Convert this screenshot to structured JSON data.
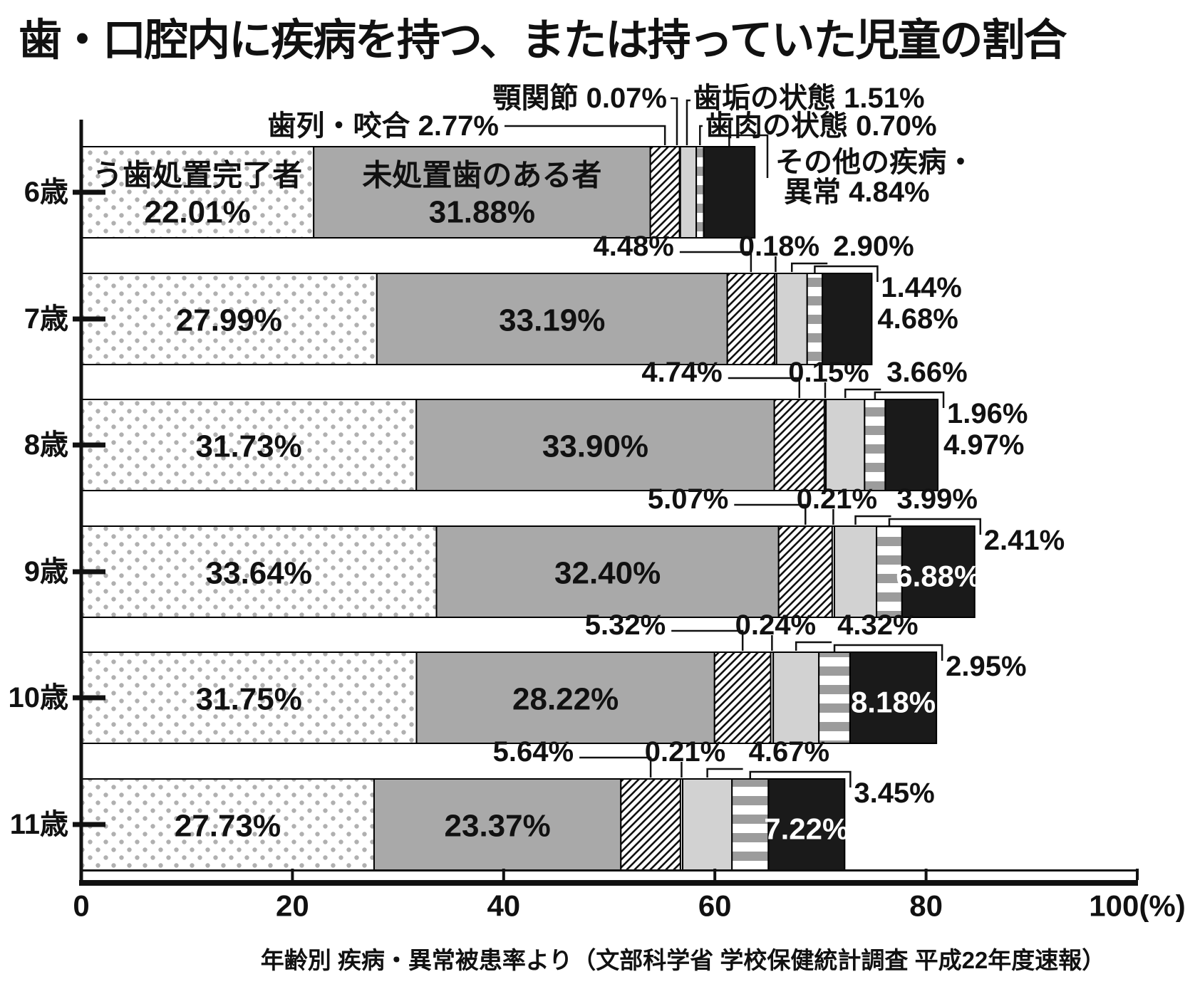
{
  "title": "歯・口腔内に疾病を持つ、または持っていた児童の割合",
  "source_note": "年齢別 疾病・異常被患率より（文部科学省 学校保健統計調査 平成22年度速報）",
  "chart_data": {
    "type": "bar",
    "stacked": true,
    "orientation": "horizontal",
    "categories": [
      "6歳",
      "7歳",
      "8歳",
      "9歳",
      "10歳",
      "11歳"
    ],
    "series": [
      {
        "name": "う歯処置完了者",
        "pattern": "dots",
        "values": [
          22.01,
          27.99,
          31.73,
          33.64,
          31.75,
          27.73
        ]
      },
      {
        "name": "未処置歯のある者",
        "pattern": "solid-gray",
        "values": [
          31.88,
          33.19,
          33.9,
          32.4,
          28.22,
          23.37
        ]
      },
      {
        "name": "歯列・咬合",
        "pattern": "diagonal-hatch",
        "values": [
          2.77,
          4.48,
          4.74,
          5.07,
          5.32,
          5.64
        ]
      },
      {
        "name": "顎関節",
        "pattern": "white",
        "values": [
          0.07,
          0.18,
          0.15,
          0.21,
          0.24,
          0.21
        ]
      },
      {
        "name": "歯垢の状態",
        "pattern": "solid-lightgray",
        "values": [
          1.51,
          2.9,
          3.66,
          3.99,
          4.32,
          4.67
        ]
      },
      {
        "name": "歯肉の状態",
        "pattern": "horizontal-stripes",
        "values": [
          0.7,
          1.44,
          1.96,
          2.41,
          2.95,
          3.45
        ]
      },
      {
        "name": "その他の疾病・異常",
        "pattern": "solid-black",
        "values": [
          4.84,
          4.68,
          4.97,
          6.88,
          8.18,
          7.22
        ]
      }
    ],
    "x_ticks": [
      "0",
      "20",
      "40",
      "60",
      "80",
      "100(%)"
    ],
    "x_tick_values": [
      0,
      20,
      40,
      60,
      80,
      100
    ],
    "xlim": [
      0,
      100
    ],
    "value_suffix": "%",
    "grid": false,
    "legend": "none"
  },
  "colors": {
    "bar_gray": "#a9a9a9",
    "bar_lightgray": "#d2d2d2",
    "bar_black": "#1a1a1a",
    "stripe_gray": "#9c9c9c",
    "dot_gray": "#b0b0b0",
    "text": "#111111",
    "inverse_text": "#ffffff"
  }
}
